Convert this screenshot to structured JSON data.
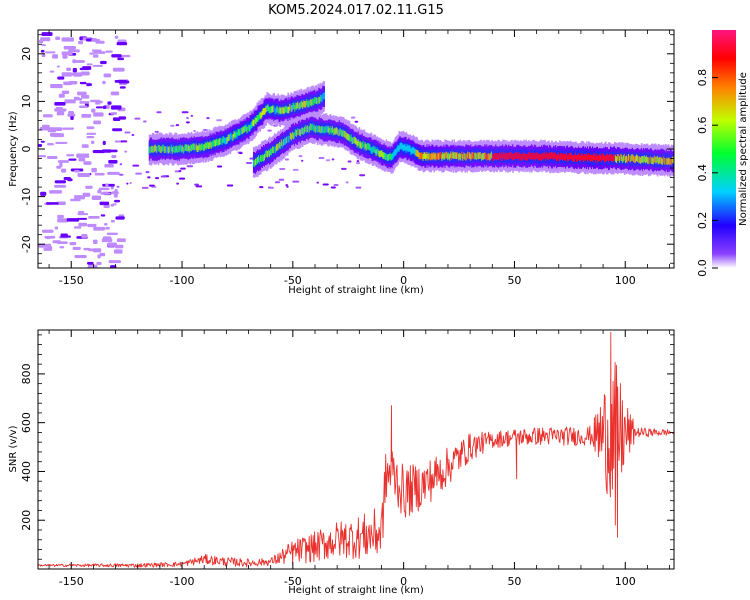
{
  "title": "KOM5.2024.017.02.11.G15",
  "chart_data": [
    {
      "type": "heatmap",
      "xlabel": "Height of straight line (km)",
      "ylabel": "Frequency (Hz)",
      "xlim": [
        -165,
        122
      ],
      "ylim": [
        -25,
        25
      ],
      "xticks": [
        -150,
        -100,
        -50,
        0,
        50,
        100
      ],
      "yticks": [
        -20,
        -10,
        0,
        10,
        20
      ],
      "colorbar": {
        "label": "Normalized spectral amplitude",
        "range": [
          0,
          1
        ],
        "ticks": [
          0.0,
          0.2,
          0.4,
          0.6,
          0.8
        ],
        "colormap": [
          "#ffffff",
          "#7000ff",
          "#0020ff",
          "#00c8ff",
          "#00ff40",
          "#c8ff00",
          "#ff8000",
          "#ff0000",
          "#ff1493"
        ]
      },
      "ridges": [
        {
          "x": [
            -115,
            -100,
            -90,
            -80,
            -70,
            -62,
            -55,
            -48,
            -40,
            -36
          ],
          "y": [
            0,
            0,
            0.5,
            2,
            4.5,
            8.5,
            8,
            9,
            10,
            11
          ]
        },
        {
          "x": [
            -68,
            -58,
            -50,
            -42,
            -35,
            -28,
            -22,
            -15,
            -8,
            -5
          ],
          "y": [
            -3,
            0,
            3,
            4.5,
            4,
            3.5,
            1.5,
            0,
            -1.5,
            -1.8
          ]
        },
        {
          "x": [
            -5,
            -2,
            2,
            8,
            20,
            40,
            60,
            80,
            100,
            122
          ],
          "y": [
            -1.5,
            0.5,
            0,
            -1.5,
            -1.5,
            -1.5,
            -1.5,
            -1.8,
            -2,
            -2.5
          ]
        }
      ],
      "noise_region": {
        "x": [
          -165,
          -128
        ],
        "y": [
          -25,
          25
        ]
      }
    },
    {
      "type": "line",
      "xlabel": "Height of straight line (km)",
      "ylabel": "SNR (v/v)",
      "xlim": [
        -165,
        122
      ],
      "ylim": [
        0,
        980
      ],
      "xticks": [
        -150,
        -100,
        -50,
        0,
        50,
        100
      ],
      "yticks": [
        200,
        400,
        600,
        800
      ],
      "color": "#e8302c",
      "trend": {
        "x": [
          -165,
          -120,
          -100,
          -90,
          -80,
          -70,
          -60,
          -50,
          -40,
          -30,
          -20,
          -10,
          -8,
          -5,
          0,
          10,
          20,
          30,
          40,
          50,
          60,
          70,
          80,
          90,
          95,
          100,
          105,
          110,
          122
        ],
        "y": [
          15,
          15,
          20,
          40,
          30,
          25,
          30,
          70,
          90,
          120,
          130,
          150,
          380,
          400,
          310,
          350,
          420,
          500,
          530,
          540,
          545,
          545,
          545,
          550,
          550,
          550,
          560,
          560,
          560
        ]
      },
      "amplitude": {
        "x": [
          -165,
          -100,
          -90,
          -60,
          -50,
          -20,
          -10,
          0,
          20,
          40,
          85,
          90,
          95,
          100,
          105,
          122
        ],
        "y": [
          4,
          10,
          20,
          15,
          50,
          90,
          110,
          110,
          80,
          35,
          40,
          200,
          320,
          150,
          20,
          12
        ]
      },
      "spikes": [
        {
          "x": -5.5,
          "y": 670
        },
        {
          "x": 51,
          "y": 370
        },
        {
          "x": 93.5,
          "y": 970
        },
        {
          "x": 95.5,
          "y": 180
        },
        {
          "x": 96.5,
          "y": 130
        }
      ]
    }
  ]
}
